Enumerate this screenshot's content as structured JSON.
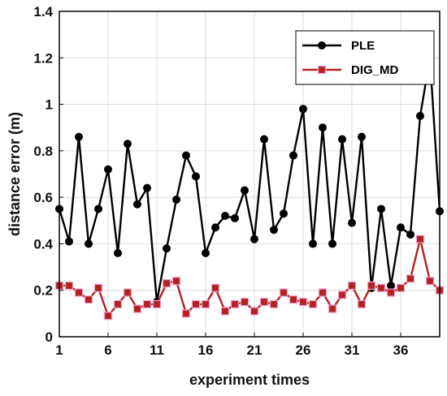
{
  "chart_data": {
    "type": "line",
    "title": "",
    "xlabel": "experiment times",
    "ylabel": "distance error (m)",
    "xlim": [
      1,
      40
    ],
    "ylim": [
      0,
      1.4
    ],
    "xticks": [
      "1",
      "6",
      "11",
      "16",
      "21",
      "26",
      "31",
      "36"
    ],
    "yticks": [
      "0",
      "0.2",
      "0.4",
      "0.6",
      "0.8",
      "1",
      "1.2",
      "1.4"
    ],
    "grid": true,
    "legend_position": "top-right",
    "x": [
      1,
      2,
      3,
      4,
      5,
      6,
      7,
      8,
      9,
      10,
      11,
      12,
      13,
      14,
      15,
      16,
      17,
      18,
      19,
      20,
      21,
      22,
      23,
      24,
      25,
      26,
      27,
      28,
      29,
      30,
      31,
      32,
      33,
      34,
      35,
      36,
      37,
      38,
      39,
      40
    ],
    "series": [
      {
        "name": "PLE",
        "color": "#000000",
        "marker": "circle",
        "values": [
          0.55,
          0.41,
          0.86,
          0.4,
          0.55,
          0.72,
          0.36,
          0.83,
          0.57,
          0.64,
          0.15,
          0.38,
          0.59,
          0.78,
          0.69,
          0.36,
          0.47,
          0.52,
          0.51,
          0.63,
          0.42,
          0.85,
          0.46,
          0.53,
          0.78,
          0.98,
          0.4,
          0.9,
          0.4,
          0.85,
          0.49,
          0.86,
          0.21,
          0.55,
          0.22,
          0.47,
          0.44,
          0.95,
          1.2,
          0.54
        ]
      },
      {
        "name": "DIG_MD",
        "color": "#b22222",
        "marker": "square",
        "values": [
          0.22,
          0.22,
          0.19,
          0.16,
          0.21,
          0.09,
          0.14,
          0.19,
          0.12,
          0.14,
          0.14,
          0.23,
          0.24,
          0.1,
          0.14,
          0.14,
          0.21,
          0.11,
          0.14,
          0.15,
          0.11,
          0.15,
          0.14,
          0.19,
          0.16,
          0.15,
          0.14,
          0.19,
          0.12,
          0.18,
          0.22,
          0.14,
          0.22,
          0.21,
          0.19,
          0.21,
          0.25,
          0.42,
          0.24,
          0.2
        ]
      }
    ]
  }
}
